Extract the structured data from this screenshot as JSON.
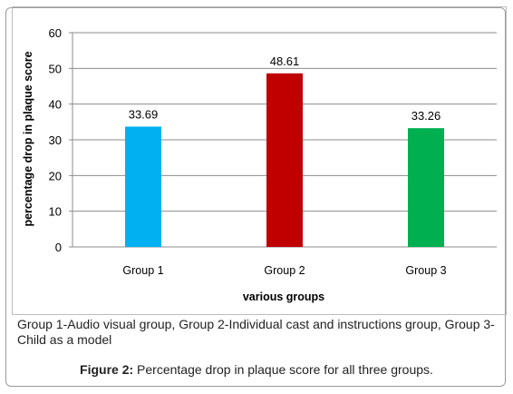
{
  "chart_data": {
    "type": "bar",
    "categories": [
      "Group 1",
      "Group 2",
      "Group 3"
    ],
    "values": [
      33.69,
      48.61,
      33.26
    ],
    "value_labels": [
      "33.69",
      "48.61",
      "33.26"
    ],
    "colors": [
      "#00b0f0",
      "#c00000",
      "#00b050"
    ],
    "title": "",
    "xlabel": "various groups",
    "ylabel": "percentage drop in plaque score",
    "ylim": [
      0,
      60
    ],
    "yticks": [
      "0",
      "10",
      "20",
      "30",
      "40",
      "50",
      "60"
    ],
    "grid": true,
    "gridline_color": "#8c8c8c"
  },
  "caption": {
    "note": "Group 1-Audio visual group, Group 2-Individual cast and instructions group, Group 3-Child as a model",
    "figure_label": "Figure 2:",
    "figure_text": " Percentage drop in plaque score for all three groups."
  }
}
